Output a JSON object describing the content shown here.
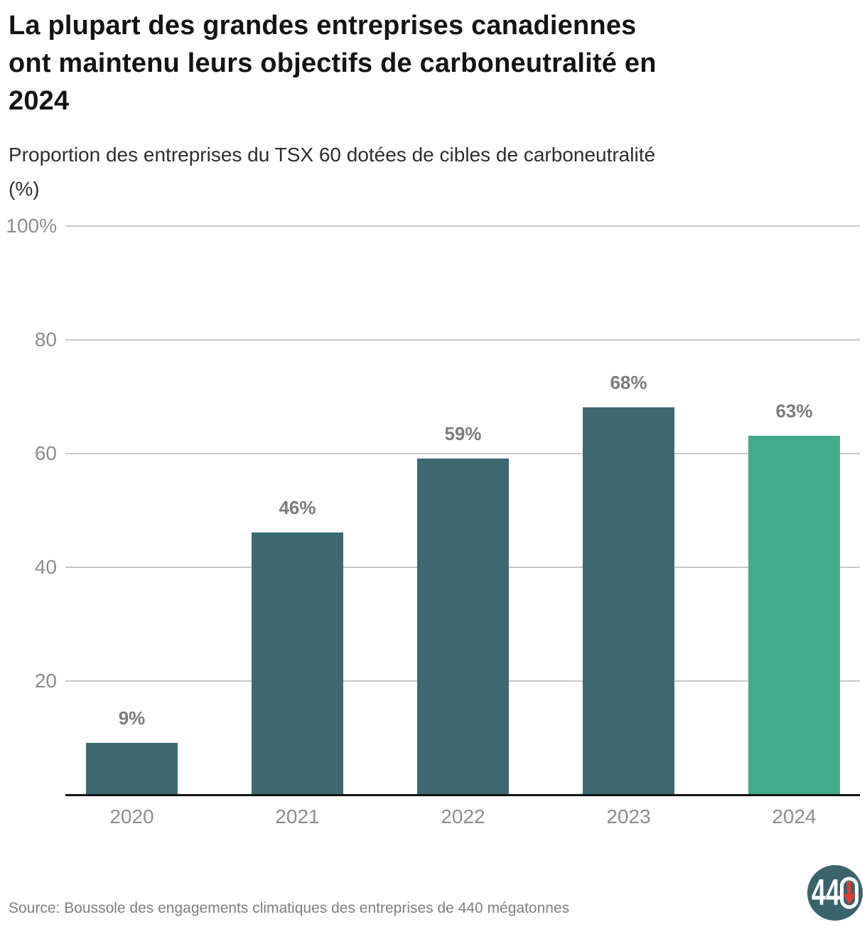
{
  "header": {
    "title_lines": [
      "La plupart des grandes entreprises canadiennes",
      "ont maintenu leurs objectifs de carboneutralité en",
      "2024"
    ],
    "subtitle_lines": [
      "Proportion des entreprises du TSX 60 dotées de cibles de carboneutralité",
      "(%)"
    ]
  },
  "chart_data": {
    "type": "bar",
    "title": "La plupart des grandes entreprises canadiennes ont maintenu leurs objectifs de carboneutralité en 2024",
    "subtitle": "Proportion des entreprises du TSX 60 dotées de cibles de carboneutralité (%)",
    "categories": [
      "2020",
      "2021",
      "2022",
      "2023",
      "2024"
    ],
    "values": [
      9,
      46,
      59,
      68,
      63
    ],
    "value_labels": [
      "9%",
      "46%",
      "59%",
      "68%",
      "63%"
    ],
    "highlight_index": 4,
    "xlabel": "",
    "ylabel": "Proportion des entreprises du TSX 60 dotées de cibles de carboneutralité (%)",
    "ylim": [
      0,
      100
    ],
    "yticks": [
      {
        "value": 100,
        "label": "100%"
      },
      {
        "value": 80,
        "label": "80"
      },
      {
        "value": 60,
        "label": "60"
      },
      {
        "value": 40,
        "label": "40"
      },
      {
        "value": 20,
        "label": "20"
      }
    ],
    "grid": "horizontal",
    "legend": "none",
    "colors": {
      "bar": "#3d6a72",
      "highlight_bar": "#44aa8c",
      "grid": "#c9c9c9",
      "axis": "#141414",
      "tick_text": "#8d8d8d",
      "value_text": "#7c7c7c"
    }
  },
  "footer": {
    "source": "Source: Boussole des engagements climatiques des entreprises de 440 mégatonnes",
    "logo_digits": "44",
    "logo_circle_color": "#3a636c",
    "logo_text_color": "#ffffff",
    "logo_ring_color": "#ffffff",
    "logo_arrow_color": "#e63c33"
  }
}
